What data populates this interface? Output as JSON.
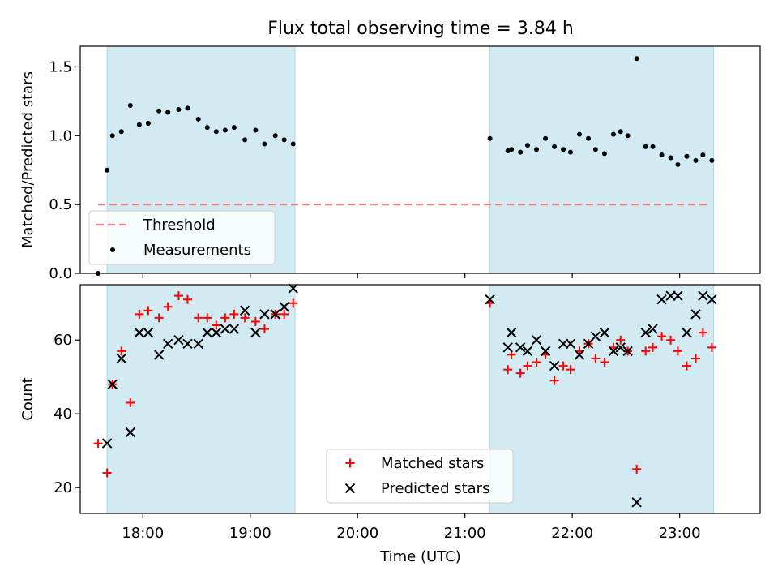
{
  "chart_data": [
    {
      "type": "scatter",
      "title": "Flux total observing time = 3.84 h",
      "ylabel": "Matched/Predicted stars",
      "xlabel": "",
      "xlim": [
        "17:25",
        "23:45"
      ],
      "ylim": [
        0,
        1.65
      ],
      "y_ticks": [
        0.0,
        0.5,
        1.0,
        1.5
      ],
      "y_tick_labels": [
        "0.0",
        "0.5",
        "1.0",
        "1.5"
      ],
      "shaded_intervals": [
        [
          "17:40",
          "19:25"
        ],
        [
          "21:14",
          "23:19"
        ]
      ],
      "series": [
        {
          "name": "Threshold",
          "kind": "dashed-line",
          "color": "#f08080",
          "x": [
            "17:35",
            "23:17"
          ],
          "y": [
            0.5,
            0.5
          ]
        },
        {
          "name": "Measurements",
          "kind": "dot",
          "color": "#000000",
          "x": [
            "17:35",
            "17:40",
            "17:43",
            "17:48",
            "17:53",
            "17:58",
            "18:03",
            "18:09",
            "18:14",
            "18:20",
            "18:25",
            "18:31",
            "18:36",
            "18:41",
            "18:46",
            "18:51",
            "18:57",
            "19:03",
            "19:08",
            "19:14",
            "19:19",
            "19:24",
            "21:14",
            "21:24",
            "21:26",
            "21:31",
            "21:35",
            "21:40",
            "21:45",
            "21:50",
            "21:55",
            "21:59",
            "22:04",
            "22:09",
            "22:13",
            "22:18",
            "22:23",
            "22:27",
            "22:31",
            "22:36",
            "22:41",
            "22:45",
            "22:50",
            "22:55",
            "22:59",
            "23:04",
            "23:09",
            "23:13",
            "23:18"
          ],
          "y": [
            0.0,
            0.75,
            1.0,
            1.03,
            1.22,
            1.08,
            1.09,
            1.18,
            1.17,
            1.19,
            1.2,
            1.12,
            1.06,
            1.03,
            1.04,
            1.06,
            0.97,
            1.04,
            0.94,
            1.0,
            0.97,
            0.94,
            0.98,
            0.89,
            0.9,
            0.88,
            0.93,
            0.9,
            0.98,
            0.92,
            0.9,
            0.88,
            1.01,
            0.98,
            0.9,
            0.87,
            1.01,
            1.03,
            1.0,
            1.56,
            0.92,
            0.92,
            0.86,
            0.84,
            0.79,
            0.85,
            0.82,
            0.86,
            0.82
          ]
        }
      ],
      "legend": {
        "position": "lower-left",
        "entries": [
          {
            "label": "Threshold",
            "marker": "dashed-line",
            "color": "#f08080"
          },
          {
            "label": "Measurements",
            "marker": "dot",
            "color": "#000000"
          }
        ]
      }
    },
    {
      "type": "scatter",
      "title": "",
      "ylabel": "Count",
      "xlabel": "Time (UTC)",
      "xlim": [
        "17:25",
        "23:45"
      ],
      "ylim": [
        13,
        75
      ],
      "x_ticks": [
        "18:00",
        "19:00",
        "20:00",
        "21:00",
        "22:00",
        "23:00"
      ],
      "y_ticks": [
        20,
        40,
        60
      ],
      "y_tick_labels": [
        "20",
        "40",
        "60"
      ],
      "shaded_intervals": [
        [
          "17:40",
          "19:25"
        ],
        [
          "21:14",
          "23:19"
        ]
      ],
      "series": [
        {
          "name": "Matched stars",
          "kind": "plus",
          "color": "#ff0000",
          "x": [
            "17:35",
            "17:40",
            "17:43",
            "17:48",
            "17:53",
            "17:58",
            "18:03",
            "18:09",
            "18:14",
            "18:20",
            "18:25",
            "18:31",
            "18:36",
            "18:41",
            "18:46",
            "18:51",
            "18:57",
            "19:03",
            "19:08",
            "19:14",
            "19:19",
            "19:24",
            "21:14",
            "21:24",
            "21:26",
            "21:31",
            "21:35",
            "21:40",
            "21:45",
            "21:50",
            "21:55",
            "21:59",
            "22:04",
            "22:09",
            "22:13",
            "22:18",
            "22:23",
            "22:27",
            "22:31",
            "22:36",
            "22:41",
            "22:45",
            "22:50",
            "22:55",
            "22:59",
            "23:04",
            "23:09",
            "23:13",
            "23:18"
          ],
          "y": [
            32,
            24,
            48,
            57,
            43,
            67,
            68,
            66,
            69,
            72,
            71,
            66,
            66,
            64,
            66,
            67,
            66,
            65,
            63,
            67,
            67,
            70,
            70,
            52,
            56,
            51,
            53,
            54,
            56,
            49,
            53,
            52,
            57,
            59,
            55,
            54,
            58,
            60,
            57,
            25,
            57,
            58,
            61,
            60,
            57,
            53,
            55,
            62,
            58
          ]
        },
        {
          "name": "Predicted stars",
          "kind": "x",
          "color": "#000000",
          "x": [
            "17:40",
            "17:43",
            "17:48",
            "17:53",
            "17:58",
            "18:03",
            "18:09",
            "18:14",
            "18:20",
            "18:25",
            "18:31",
            "18:36",
            "18:41",
            "18:46",
            "18:51",
            "18:57",
            "19:03",
            "19:08",
            "19:14",
            "19:19",
            "19:24",
            "21:14",
            "21:24",
            "21:26",
            "21:31",
            "21:35",
            "21:40",
            "21:45",
            "21:50",
            "21:55",
            "21:59",
            "22:04",
            "22:09",
            "22:13",
            "22:18",
            "22:23",
            "22:27",
            "22:31",
            "22:36",
            "22:41",
            "22:45",
            "22:50",
            "22:55",
            "22:59",
            "23:04",
            "23:09",
            "23:13",
            "23:18"
          ],
          "y": [
            32,
            48,
            55,
            35,
            62,
            62,
            56,
            59,
            60,
            59,
            59,
            62,
            62,
            63,
            63,
            68,
            62,
            67,
            67,
            69,
            74,
            71,
            58,
            62,
            58,
            57,
            60,
            57,
            53,
            59,
            59,
            56,
            59,
            61,
            62,
            57,
            58,
            57,
            16,
            62,
            63,
            71,
            72,
            72,
            62,
            67,
            72,
            71
          ]
        }
      ],
      "legend": {
        "position": "lower-center",
        "entries": [
          {
            "label": "Matched stars",
            "marker": "plus",
            "color": "#ff0000"
          },
          {
            "label": "Predicted stars",
            "marker": "x",
            "color": "#000000"
          }
        ]
      }
    }
  ],
  "colors": {
    "shade": "#add8e6",
    "threshold": "#f08080",
    "matched": "#ff0000",
    "predicted": "#000000"
  }
}
